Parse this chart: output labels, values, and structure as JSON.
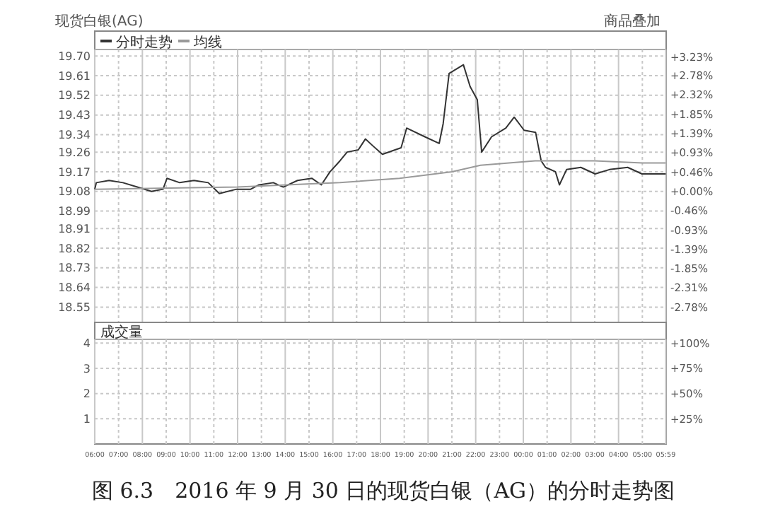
{
  "chart_data": [
    {
      "type": "line",
      "title": "现货白银(AG)",
      "subtitle": "图 6.3　2016 年 9 月 30 日的现货白银（AG）的分时走势图",
      "annotations": [
        "商品叠加"
      ],
      "legend": "top left",
      "grid": true,
      "tick_labels": "y",
      "line_style": "solid",
      "marker": "none",
      "xlim": [
        "2016-09-30T06:00",
        "2016-10-01T06:00"
      ],
      "xticks": [
        {
          "value": "2016-09-30T06:00",
          "label": null
        },
        {
          "value": "2016-09-30T07:00",
          "label": null
        },
        {
          "value": "2016-09-30T08:00",
          "label": null
        },
        {
          "value": "2016-09-30T09:00",
          "label": null
        },
        {
          "value": "2016-09-30T10:00",
          "label": null
        },
        {
          "value": "2016-09-30T11:00",
          "label": null
        },
        {
          "value": "2016-09-30T12:00",
          "label": null
        },
        {
          "value": "2016-09-30T13:00",
          "label": null
        },
        {
          "value": "2016-09-30T14:00",
          "label": null
        },
        {
          "value": "2016-09-30T15:00",
          "label": null
        },
        {
          "value": "2016-09-30T16:00",
          "label": null
        },
        {
          "value": "2016-09-30T17:00",
          "label": null
        },
        {
          "value": "2016-09-30T18:00",
          "label": null
        },
        {
          "value": "2016-09-30T19:00",
          "label": null
        },
        {
          "value": "2016-09-30T20:00",
          "label": null
        },
        {
          "value": "2016-09-30T21:00",
          "label": null
        },
        {
          "value": "2016-09-30T22:00",
          "label": null
        },
        {
          "value": "2016-09-30T23:00",
          "label": null
        },
        {
          "value": "2016-10-01T00:00",
          "label": null
        },
        {
          "value": "2016-10-01T01:00",
          "label": null
        },
        {
          "value": "2016-10-01T02:00",
          "label": null
        },
        {
          "value": "2016-10-01T03:00",
          "label": null
        },
        {
          "value": "2016-10-01T04:00",
          "label": null
        },
        {
          "value": "2016-10-01T05:00",
          "label": null
        },
        {
          "value": "2016-10-01T05:59",
          "label": null
        }
      ],
      "ylim": [
        18.48,
        19.73
      ],
      "yticks": [
        {
          "value": 19.7,
          "label": "19.70"
        },
        19.61,
        19.52,
        19.43,
        19.34,
        19.26,
        19.17,
        19.08,
        18.99,
        18.91,
        18.82,
        18.73,
        18.64,
        18.55
      ],
      "y2lim": [
        -3.14,
        3.41
      ],
      "y2ticks": [
        {
          "value": 3.23,
          "label": "+3.23%"
        },
        {
          "value": 2.78,
          "label": "+2.78%"
        },
        {
          "value": 2.32,
          "label": "+2.32%"
        },
        {
          "value": 1.85,
          "label": "+1.85%"
        },
        {
          "value": 1.39,
          "label": "+1.39%"
        },
        {
          "value": 0.93,
          "label": "+0.93%"
        },
        {
          "value": 0.46,
          "label": "+0.46%"
        },
        {
          "value": 0,
          "label": "+0.00%"
        },
        {
          "value": -0.46,
          "label": "-0.46%"
        },
        {
          "value": -0.93,
          "label": "-0.93%"
        },
        {
          "value": -1.39,
          "label": "-1.39%"
        },
        {
          "value": -1.85,
          "label": "-1.85%"
        },
        {
          "value": -2.31,
          "label": "-2.31%"
        },
        {
          "value": -2.78,
          "label": "-2.78%"
        }
      ],
      "series": [
        {
          "name": "分时走势",
          "color": "#333333",
          "x": [
            "2016-09-30T06:00",
            "2016-09-30T06:04",
            "2016-09-30T06:36",
            "2016-09-30T07:11",
            "2016-09-30T07:47",
            "2016-09-30T08:23",
            "2016-09-30T08:52",
            "2016-09-30T09:02",
            "2016-09-30T09:34",
            "2016-09-30T10:10",
            "2016-09-30T10:46",
            "2016-09-30T11:14",
            "2016-09-30T11:57",
            "2016-09-30T12:33",
            "2016-09-30T12:54",
            "2016-09-30T13:30",
            "2016-09-30T13:55",
            "2016-09-30T14:31",
            "2016-09-30T15:07",
            "2016-09-30T15:31",
            "2016-09-30T15:53",
            "2016-09-30T16:18",
            "2016-09-30T16:36",
            "2016-09-30T17:04",
            "2016-09-30T17:22",
            "2016-09-30T17:40",
            "2016-09-30T18:05",
            "2016-09-30T18:52",
            "2016-09-30T19:06",
            "2016-09-30T19:52",
            "2016-09-30T20:28",
            "2016-09-30T20:38",
            "2016-09-30T20:53",
            "2016-09-30T21:29",
            "2016-09-30T21:46",
            "2016-09-30T22:04",
            "2016-09-30T22:15",
            "2016-09-30T22:40",
            "2016-09-30T23:16",
            "2016-09-30T23:37",
            "2016-10-01T00:02",
            "2016-10-01T00:31",
            "2016-10-01T00:45",
            "2016-10-01T00:56",
            "2016-10-01T01:21",
            "2016-10-01T01:31",
            "2016-10-01T01:49",
            "2016-10-01T02:25",
            "2016-10-01T03:01",
            "2016-10-01T03:37",
            "2016-10-01T04:23",
            "2016-10-01T04:59",
            "2016-10-01T05:59"
          ],
          "values": [
            19.09,
            19.12,
            19.13,
            19.12,
            19.1,
            19.08,
            19.09,
            19.14,
            19.12,
            19.13,
            19.12,
            19.07,
            19.09,
            19.09,
            19.11,
            19.12,
            19.1,
            19.13,
            19.14,
            19.11,
            19.17,
            19.22,
            19.26,
            19.27,
            19.32,
            19.29,
            19.25,
            19.28,
            19.37,
            19.33,
            19.3,
            19.39,
            19.62,
            19.66,
            19.56,
            19.5,
            19.26,
            19.33,
            19.37,
            19.42,
            19.36,
            19.35,
            19.22,
            19.19,
            19.17,
            19.11,
            19.18,
            19.19,
            19.16,
            19.18,
            19.19,
            19.16,
            19.16
          ]
        },
        {
          "name": "均线",
          "color": "#9a9a9a",
          "x": [
            "2016-09-30T06:00",
            "2016-09-30T12:00",
            "2016-09-30T16:18",
            "2016-09-30T18:48",
            "2016-09-30T21:00",
            "2016-09-30T22:12",
            "2016-10-01T00:30",
            "2016-10-01T03:00",
            "2016-10-01T05:00",
            "2016-10-01T05:59"
          ],
          "values": [
            19.09,
            19.1,
            19.12,
            19.14,
            19.17,
            19.2,
            19.22,
            19.22,
            19.21,
            19.21
          ]
        }
      ]
    },
    {
      "type": "bar",
      "title": "成交量",
      "grid": true,
      "xlim": [
        "2016-09-30T06:00",
        "2016-10-01T06:00"
      ],
      "ylim": [
        0,
        4.15
      ],
      "yticks": [
        1,
        2,
        3,
        4
      ],
      "y2lim": [
        0,
        103.75
      ],
      "y2ticks": [
        {
          "value": 25,
          "label": "+25%"
        },
        {
          "value": 50,
          "label": "+50%"
        },
        {
          "value": 75,
          "label": "+75%"
        },
        {
          "value": 100,
          "label": "+100%"
        }
      ],
      "xticks": [
        {
          "value": "2016-09-30T06:00",
          "label": "06:00"
        },
        {
          "value": "2016-09-30T07:00",
          "label": "07:00"
        },
        {
          "value": "2016-09-30T08:00",
          "label": "08:00"
        },
        {
          "value": "2016-09-30T09:00",
          "label": "09:00"
        },
        {
          "value": "2016-09-30T10:00",
          "label": "10:00"
        },
        {
          "value": "2016-09-30T11:00",
          "label": "11:00"
        },
        {
          "value": "2016-09-30T12:00",
          "label": "12:00"
        },
        {
          "value": "2016-09-30T13:00",
          "label": "13:00"
        },
        {
          "value": "2016-09-30T14:00",
          "label": "14:00"
        },
        {
          "value": "2016-09-30T15:00",
          "label": "15:00"
        },
        {
          "value": "2016-09-30T16:00",
          "label": "16:00"
        },
        {
          "value": "2016-09-30T17:00",
          "label": "17:00"
        },
        {
          "value": "2016-09-30T18:00",
          "label": "18:00"
        },
        {
          "value": "2016-09-30T19:00",
          "label": "19:00"
        },
        {
          "value": "2016-09-30T20:00",
          "label": "20:00"
        },
        {
          "value": "2016-09-30T21:00",
          "label": "21:00"
        },
        {
          "value": "2016-09-30T22:00",
          "label": "22:00"
        },
        {
          "value": "2016-09-30T23:00",
          "label": "23:00"
        },
        {
          "value": "2016-10-01T00:00",
          "label": "00:00"
        },
        {
          "value": "2016-10-01T01:00",
          "label": "01:00"
        },
        {
          "value": "2016-10-01T02:00",
          "label": "02:00"
        },
        {
          "value": "2016-10-01T03:00",
          "label": "03:00"
        },
        {
          "value": "2016-10-01T04:00",
          "label": "04:00"
        },
        {
          "value": "2016-10-01T05:00",
          "label": "05:00"
        },
        {
          "value": "2016-10-01T05:59",
          "label": "05:59"
        }
      ]
    }
  ]
}
